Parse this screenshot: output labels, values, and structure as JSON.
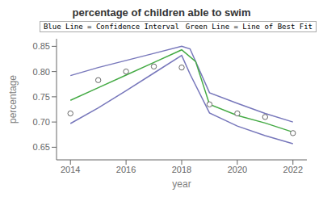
{
  "chart_data": {
    "type": "line",
    "title": "percentage of children able to swim",
    "xlabel": "year",
    "ylabel": "percentage",
    "xlim": [
      2013.5,
      2022.5
    ],
    "xticks": [
      2014,
      2016,
      2018,
      2020,
      2022
    ],
    "ylim": [
      0.625,
      0.865
    ],
    "yticks": [
      0.65,
      {
        "value": 0.7,
        "label": "0.70"
      },
      0.75,
      {
        "value": 0.8,
        "label": "0.80"
      },
      0.85
    ],
    "grid": false,
    "annotations": [
      "Blue Line = Confidence Interval",
      "Green Line = Line of Best Fit"
    ],
    "series": [
      {
        "type": "line",
        "color": "#7777bb",
        "x": [
          2014,
          2015,
          2016,
          2017,
          2018,
          2018.3,
          2019,
          2020,
          2021,
          2022
        ],
        "values": [
          0.792,
          0.808,
          0.822,
          0.836,
          0.85,
          0.845,
          0.758,
          0.737,
          0.717,
          0.7
        ]
      },
      {
        "type": "line",
        "color": "#7777bb",
        "x": [
          2014,
          2015,
          2016,
          2017,
          2018,
          2018.3,
          2019,
          2020,
          2021,
          2022
        ],
        "values": [
          0.697,
          0.728,
          0.762,
          0.797,
          0.832,
          0.795,
          0.718,
          0.692,
          0.673,
          0.657
        ]
      },
      {
        "type": "line",
        "color": "#44aa44",
        "x": [
          2014,
          2015,
          2016,
          2017,
          2018,
          2018.5,
          2019,
          2020,
          2021,
          2022
        ],
        "values": [
          0.743,
          0.768,
          0.793,
          0.818,
          0.843,
          0.82,
          0.735,
          0.713,
          0.698,
          0.68
        ]
      },
      {
        "type": "scatter",
        "marker": "circle",
        "color": "#666666",
        "x": [
          2014,
          2015,
          2016,
          2017,
          2018,
          2019,
          2020,
          2021,
          2022
        ],
        "values": [
          0.717,
          0.783,
          0.8,
          0.81,
          0.808,
          0.735,
          0.717,
          0.71,
          0.678
        ]
      }
    ]
  }
}
